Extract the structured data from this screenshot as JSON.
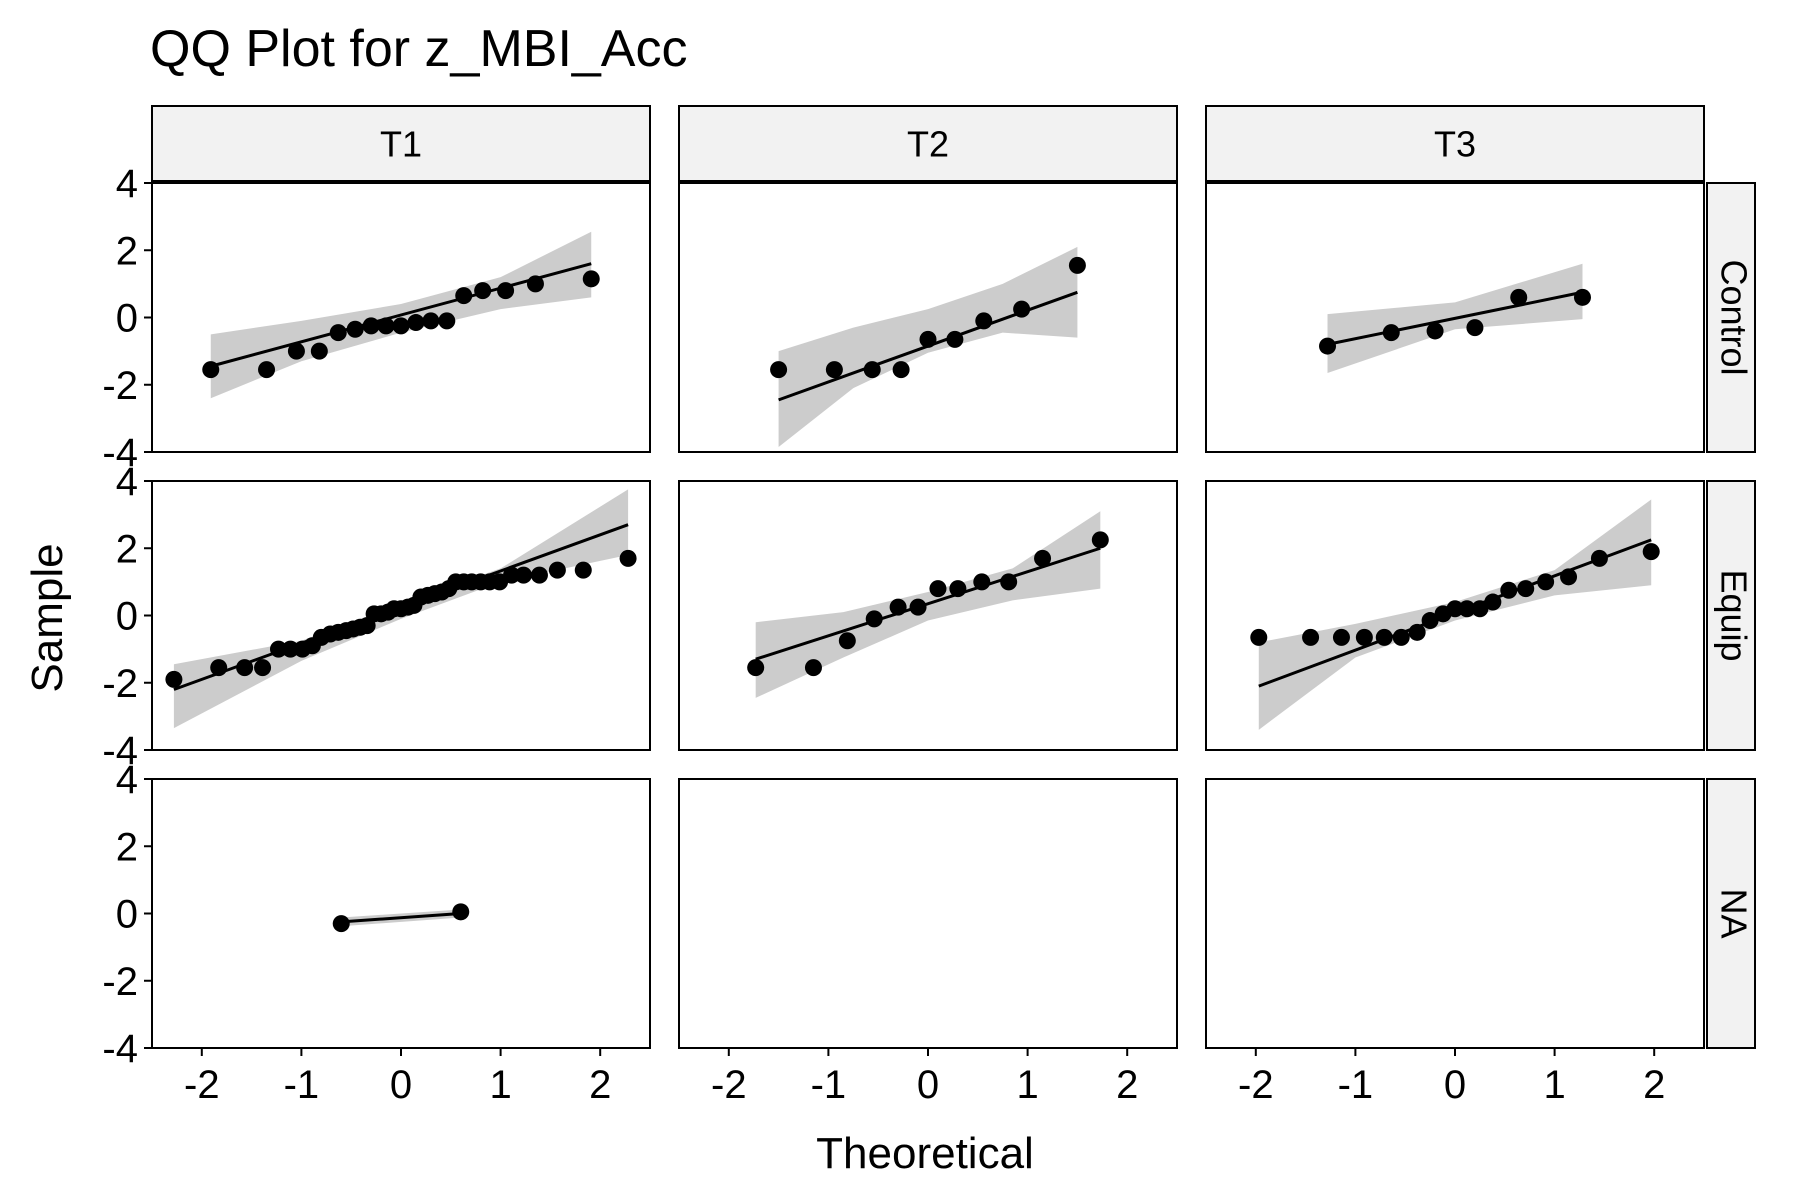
{
  "chart_data": {
    "type": "scatter",
    "title": "QQ Plot for z_MBI_Acc",
    "xlabel": "Theoretical",
    "ylabel": "Sample",
    "xlim": [
      -2.5,
      2.5
    ],
    "ylim": [
      -4,
      4
    ],
    "x_ticks": [
      "-2",
      "-1",
      "0",
      "1",
      "2"
    ],
    "y_ticks": [
      "-4",
      "-2",
      "0",
      "2",
      "4"
    ],
    "facet_columns": [
      "T1",
      "T2",
      "T3"
    ],
    "facet_rows": [
      "Control",
      "Equip",
      "NA"
    ],
    "colors": {
      "points": "#000000",
      "line": "#000000",
      "band": "#cccccc",
      "strip": "#f2f2f2"
    },
    "panels": [
      {
        "column": "T1",
        "row": "Control",
        "x": [
          -1.91,
          -1.35,
          -1.05,
          -0.82,
          -0.63,
          -0.46,
          -0.3,
          -0.15,
          0.0,
          0.15,
          0.3,
          0.46,
          0.63,
          0.82,
          1.05,
          1.35,
          1.91
        ],
        "y": [
          -1.55,
          -1.55,
          -1.0,
          -1.0,
          -0.45,
          -0.35,
          -0.25,
          -0.25,
          -0.25,
          -0.15,
          -0.1,
          -0.1,
          0.65,
          0.8,
          0.8,
          1.0,
          1.15
        ],
        "line": [
          [
            -1.91,
            -1.45
          ],
          [
            1.91,
            1.6
          ]
        ],
        "band_upper": [
          [
            -1.91,
            -0.5
          ],
          [
            -1.0,
            -0.1
          ],
          [
            0.0,
            0.4
          ],
          [
            1.0,
            1.2
          ],
          [
            1.91,
            2.55
          ]
        ],
        "band_lower": [
          [
            -1.91,
            -2.4
          ],
          [
            -1.0,
            -1.3
          ],
          [
            0.0,
            -0.45
          ],
          [
            1.0,
            0.25
          ],
          [
            1.91,
            0.6
          ]
        ]
      },
      {
        "column": "T2",
        "row": "Control",
        "x": [
          -1.5,
          -0.94,
          -0.56,
          -0.27,
          0.0,
          0.27,
          0.56,
          0.94,
          1.5
        ],
        "y": [
          -1.55,
          -1.55,
          -1.55,
          -1.55,
          -0.65,
          -0.65,
          -0.1,
          0.25,
          1.55
        ],
        "line": [
          [
            -1.5,
            -2.45
          ],
          [
            1.5,
            0.75
          ]
        ],
        "band_upper": [
          [
            -1.5,
            -1.0
          ],
          [
            -0.75,
            -0.3
          ],
          [
            0.0,
            0.25
          ],
          [
            0.75,
            1.0
          ],
          [
            1.5,
            2.1
          ]
        ],
        "band_lower": [
          [
            -1.5,
            -3.85
          ],
          [
            -0.75,
            -2.1
          ],
          [
            0.0,
            -1.05
          ],
          [
            0.75,
            -0.45
          ],
          [
            1.5,
            -0.6
          ]
        ]
      },
      {
        "column": "T3",
        "row": "Control",
        "x": [
          -1.28,
          -0.64,
          -0.2,
          0.2,
          0.64,
          1.28
        ],
        "y": [
          -0.85,
          -0.45,
          -0.4,
          -0.3,
          0.6,
          0.6
        ],
        "line": [
          [
            -1.28,
            -0.8
          ],
          [
            1.28,
            0.75
          ]
        ],
        "band_upper": [
          [
            -1.28,
            0.1
          ],
          [
            0.0,
            0.45
          ],
          [
            1.28,
            1.6
          ]
        ],
        "band_lower": [
          [
            -1.28,
            -1.65
          ],
          [
            0.0,
            -0.35
          ],
          [
            1.28,
            -0.05
          ]
        ]
      },
      {
        "column": "T1",
        "row": "Equip",
        "x": [
          -2.28,
          -1.83,
          -1.57,
          -1.39,
          -1.23,
          -1.11,
          -0.99,
          -0.89,
          -0.8,
          -0.71,
          -0.63,
          -0.55,
          -0.48,
          -0.41,
          -0.34,
          -0.27,
          -0.2,
          -0.13,
          -0.07,
          0.0,
          0.07,
          0.13,
          0.2,
          0.27,
          0.34,
          0.41,
          0.48,
          0.55,
          0.63,
          0.71,
          0.8,
          0.89,
          0.99,
          1.11,
          1.23,
          1.39,
          1.57,
          1.83,
          2.28
        ],
        "y": [
          -1.9,
          -1.55,
          -1.55,
          -1.55,
          -1.0,
          -1.0,
          -1.0,
          -0.9,
          -0.65,
          -0.55,
          -0.5,
          -0.45,
          -0.4,
          -0.35,
          -0.3,
          0.05,
          0.05,
          0.1,
          0.2,
          0.2,
          0.25,
          0.3,
          0.55,
          0.6,
          0.65,
          0.7,
          0.8,
          1.0,
          1.0,
          1.0,
          1.0,
          1.0,
          1.0,
          1.2,
          1.2,
          1.2,
          1.35,
          1.35,
          1.7
        ],
        "line": [
          [
            -2.28,
            -2.2
          ],
          [
            2.28,
            2.7
          ]
        ],
        "band_upper": [
          [
            -2.28,
            -1.45
          ],
          [
            -1.0,
            -0.75
          ],
          [
            0.0,
            0.35
          ],
          [
            1.0,
            1.4
          ],
          [
            2.28,
            3.75
          ]
        ],
        "band_lower": [
          [
            -2.28,
            -3.35
          ],
          [
            -1.0,
            -1.35
          ],
          [
            0.0,
            -0.1
          ],
          [
            1.0,
            1.0
          ],
          [
            2.28,
            1.8
          ]
        ]
      },
      {
        "column": "T2",
        "row": "Equip",
        "x": [
          -1.73,
          -1.15,
          -0.81,
          -0.54,
          -0.3,
          -0.1,
          0.1,
          0.3,
          0.54,
          0.81,
          1.15,
          1.73
        ],
        "y": [
          -1.55,
          -1.55,
          -0.75,
          -0.1,
          0.25,
          0.25,
          0.8,
          0.8,
          1.0,
          1.0,
          1.7,
          2.25
        ],
        "line": [
          [
            -1.73,
            -1.3
          ],
          [
            1.73,
            2.0
          ]
        ],
        "band_upper": [
          [
            -1.73,
            -0.2
          ],
          [
            -0.85,
            0.1
          ],
          [
            0.0,
            0.7
          ],
          [
            0.85,
            1.4
          ],
          [
            1.73,
            3.1
          ]
        ],
        "band_lower": [
          [
            -1.73,
            -2.45
          ],
          [
            -0.85,
            -1.25
          ],
          [
            0.0,
            -0.15
          ],
          [
            0.85,
            0.45
          ],
          [
            1.73,
            0.8
          ]
        ]
      },
      {
        "column": "T3",
        "row": "Equip",
        "x": [
          -1.97,
          -1.45,
          -1.14,
          -0.91,
          -0.71,
          -0.54,
          -0.38,
          -0.25,
          -0.12,
          0.0,
          0.12,
          0.25,
          0.38,
          0.54,
          0.71,
          0.91,
          1.14,
          1.45,
          1.97
        ],
        "y": [
          -0.65,
          -0.65,
          -0.65,
          -0.65,
          -0.65,
          -0.65,
          -0.5,
          -0.15,
          0.05,
          0.2,
          0.2,
          0.2,
          0.4,
          0.75,
          0.8,
          1.0,
          1.15,
          1.7,
          1.9
        ],
        "line": [
          [
            -1.97,
            -2.1
          ],
          [
            1.97,
            2.25
          ]
        ],
        "band_upper": [
          [
            -1.97,
            -0.8
          ],
          [
            -1.0,
            -0.25
          ],
          [
            0.0,
            0.4
          ],
          [
            1.0,
            1.35
          ],
          [
            1.97,
            3.45
          ]
        ],
        "band_lower": [
          [
            -1.97,
            -3.4
          ],
          [
            -1.0,
            -1.25
          ],
          [
            0.0,
            -0.15
          ],
          [
            1.0,
            0.6
          ],
          [
            1.97,
            0.9
          ]
        ]
      },
      {
        "column": "T1",
        "row": "NA",
        "x": [
          -0.6,
          0.6
        ],
        "y": [
          -0.3,
          0.05
        ],
        "line": [
          [
            -0.6,
            -0.25
          ],
          [
            0.6,
            0.0
          ]
        ],
        "band_upper": [
          [
            -0.6,
            -0.12
          ],
          [
            0.6,
            0.12
          ]
        ],
        "band_lower": [
          [
            -0.6,
            -0.38
          ],
          [
            0.6,
            -0.12
          ]
        ]
      },
      {
        "column": "T2",
        "row": "NA",
        "x": [],
        "y": [],
        "line": [],
        "band_upper": [],
        "band_lower": []
      },
      {
        "column": "T3",
        "row": "NA",
        "x": [],
        "y": [],
        "line": [],
        "band_upper": [],
        "band_lower": []
      }
    ]
  }
}
